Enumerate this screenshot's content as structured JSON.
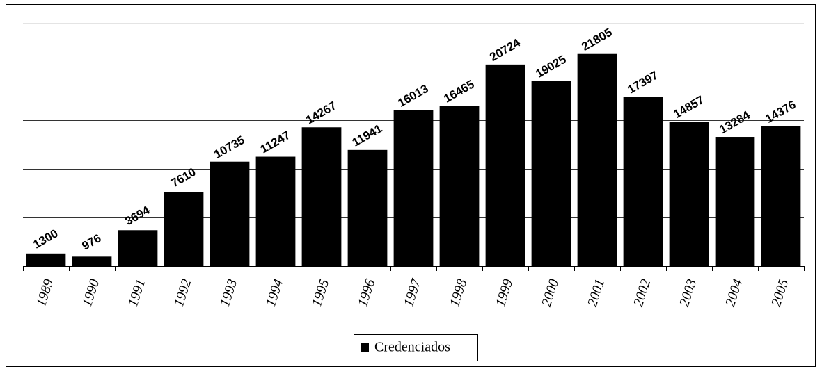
{
  "chart_data": {
    "type": "bar",
    "categories": [
      "1989",
      "1990",
      "1991",
      "1992",
      "1993",
      "1994",
      "1995",
      "1996",
      "1997",
      "1998",
      "1999",
      "2000",
      "2001",
      "2002",
      "2003",
      "2004",
      "2005"
    ],
    "series": [
      {
        "name": "Credenciados",
        "color": "#000000",
        "values": [
          1300,
          976,
          3694,
          7610,
          10735,
          11247,
          14267,
          11941,
          16013,
          16465,
          20724,
          19025,
          21805,
          17397,
          14857,
          13284,
          14376
        ]
      }
    ],
    "ylim": [
      0,
      25000
    ],
    "yticks": [
      0,
      5000,
      10000,
      15000,
      20000,
      25000
    ],
    "grid": true,
    "show_ytick_labels": false,
    "legend": "bottom"
  }
}
